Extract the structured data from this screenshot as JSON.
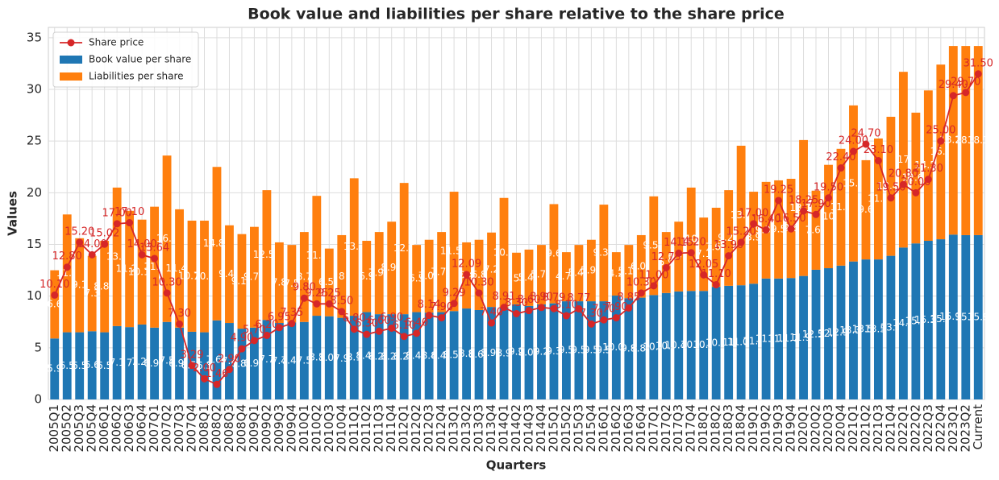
{
  "chart_data": {
    "type": "bar",
    "title": "Book value and liabilities per share relative to the share price",
    "x_label": "Quarters",
    "y_label": "Values",
    "categories": [
      "2005Q1",
      "2005Q2",
      "2005Q3",
      "2005Q4",
      "2006Q1",
      "2006Q2",
      "2006Q3",
      "2006Q4",
      "2007Q1",
      "2007Q2",
      "2007Q3",
      "2007Q4",
      "2008Q1",
      "2008Q2",
      "2008Q3",
      "2008Q4",
      "2009Q1",
      "2009Q2",
      "2009Q3",
      "2009Q4",
      "2010Q1",
      "2010Q2",
      "2010Q3",
      "2010Q4",
      "2011Q1",
      "2011Q2",
      "2011Q3",
      "2011Q4",
      "2012Q1",
      "2012Q2",
      "2012Q3",
      "2012Q4",
      "2013Q1",
      "2013Q2",
      "2013Q3",
      "2013Q4",
      "2014Q1",
      "2014Q2",
      "2014Q3",
      "2014Q4",
      "2015Q1",
      "2015Q2",
      "2015Q3",
      "2015Q4",
      "2016Q1",
      "2016Q2",
      "2016Q3",
      "2016Q4",
      "2017Q1",
      "2017Q2",
      "2017Q3",
      "2017Q4",
      "2018Q1",
      "2018Q2",
      "2018Q3",
      "2018Q4",
      "2019Q1",
      "2019Q2",
      "2019Q3",
      "2019Q4",
      "2020Q1",
      "2020Q2",
      "2020Q3",
      "2020Q4",
      "2021Q1",
      "2021Q2",
      "2021Q3",
      "2021Q4",
      "2022Q1",
      "2022Q2",
      "2022Q3",
      "2022Q4",
      "2023Q1",
      "2023Q2",
      "Current"
    ],
    "series": [
      {
        "name": "Share price",
        "type": "line",
        "color": "#d62728",
        "values": [
          10.1,
          12.8,
          15.2,
          14.0,
          15.02,
          17.0,
          17.1,
          14.0,
          13.64,
          10.3,
          7.3,
          3.29,
          2.0,
          1.46,
          2.9,
          4.9,
          5.7,
          6.2,
          6.95,
          7.35,
          9.8,
          9.25,
          9.25,
          8.5,
          6.8,
          6.3,
          6.6,
          6.9,
          6.1,
          6.4,
          8.14,
          7.9,
          9.29,
          12.09,
          10.3,
          7.4,
          8.91,
          8.3,
          8.6,
          8.9,
          8.79,
          8.1,
          8.77,
          7.3,
          7.7,
          7.9,
          8.85,
          10.3,
          11.0,
          12.75,
          14.15,
          14.2,
          12.05,
          11.1,
          13.9,
          15.2,
          17.0,
          16.4,
          19.25,
          16.5,
          18.25,
          17.9,
          19.5,
          22.4,
          24.0,
          24.7,
          23.1,
          19.5,
          20.8,
          20.0,
          21.3,
          25.0,
          29.4,
          29.7,
          31.5
        ],
        "value_labels": [
          "10.10",
          "12.80",
          "15.20",
          "14.00",
          "15.02",
          "17.00",
          "17.10",
          "14.00",
          "13.64",
          "10.30",
          "7.30",
          "3.29",
          "2.00",
          "1.46",
          "2.90",
          "4.90",
          "5.70",
          "6.20",
          "6.95",
          "7.35",
          "9.80",
          "9.25",
          "9.25",
          "8.50",
          "6.80",
          "6.30",
          "6.60",
          "6.90",
          "6.10",
          "6.40",
          "8.14",
          "7.90",
          "9.29",
          "12.09",
          "10.30",
          "7.40",
          "8.91",
          "8.30",
          "8.60",
          "8.90",
          "8.79",
          "8.10",
          "8.77",
          "7.30",
          "7.70",
          "7.90",
          "8.85",
          "10.30",
          "11.00",
          "12.75",
          "14.15",
          "14.20",
          "12.05",
          "11.10",
          "13.90",
          "15.20",
          "17.00",
          "16.40",
          "19.25",
          "16.50",
          "18.25",
          "17.90",
          "19.50",
          "22.40",
          "24.00",
          "24.70",
          "23.10",
          "19.50",
          "20.80",
          "20.00",
          "21.30",
          "25.00",
          "29.40",
          "29.70",
          "31.50"
        ]
      },
      {
        "name": "Book value per share",
        "type": "bar",
        "color": "#1f77b4",
        "values": [
          5.9,
          6.5,
          6.5,
          6.6,
          6.5,
          7.1,
          7.0,
          7.25,
          6.95,
          7.5,
          6.95,
          6.55,
          6.5,
          7.65,
          7.4,
          6.85,
          6.95,
          7.7,
          7.4,
          7.45,
          7.5,
          8.1,
          8.05,
          7.9,
          8.1,
          8.45,
          8.25,
          8.25,
          8.25,
          8.45,
          8.4,
          8.45,
          8.55,
          8.8,
          8.65,
          8.95,
          8.9,
          9.2,
          9.05,
          9.2,
          9.3,
          9.5,
          9.5,
          9.5,
          9.5,
          10.05,
          9.8,
          9.85,
          10.1,
          10.3,
          10.45,
          10.5,
          10.5,
          10.9,
          11.0,
          11.05,
          11.2,
          11.7,
          11.7,
          11.75,
          11.95,
          12.55,
          12.7,
          12.95,
          13.35,
          13.55,
          13.55,
          13.9,
          14.7,
          15.1,
          15.35,
          15.5,
          15.95,
          15.9,
          15.9
        ]
      },
      {
        "name": "Liabilities per share",
        "type": "bar",
        "color": "#ff7f0e",
        "values": [
          6.6,
          11.4,
          9.1,
          7.3,
          8.85,
          13.4,
          11.25,
          10.15,
          11.7,
          16.1,
          11.45,
          10.75,
          10.8,
          14.85,
          9.45,
          9.15,
          9.75,
          12.55,
          7.8,
          7.5,
          8.7,
          11.6,
          6.55,
          8.0,
          13.3,
          6.9,
          7.95,
          8.95,
          12.7,
          6.5,
          7.05,
          7.75,
          11.55,
          6.4,
          6.8,
          7.2,
          10.6,
          5.0,
          5.45,
          5.75,
          9.6,
          4.75,
          5.45,
          5.95,
          9.35,
          4.2,
          5.15,
          6.05,
          9.55,
          5.9,
          6.75,
          10.0,
          7.1,
          7.65,
          9.25,
          13.5,
          8.9,
          9.35,
          9.5,
          9.6,
          13.15,
          7.65,
          10.0,
          11.3,
          15.1,
          9.6,
          11.7,
          13.45,
          17.0,
          12.65,
          14.55,
          16.9,
          18.25,
          18.3,
          18.3
        ]
      }
    ],
    "ylim": [
      0,
      36
    ],
    "yticks": [
      0,
      5,
      10,
      15,
      20,
      25,
      30,
      35
    ],
    "grid": true,
    "stacked": true,
    "legend": "upper left"
  }
}
